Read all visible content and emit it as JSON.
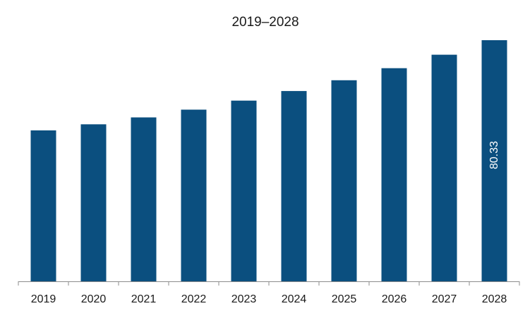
{
  "chart_data": {
    "type": "bar",
    "title": "2019–2028",
    "xlabel": "",
    "ylabel": "",
    "categories": [
      "2019",
      "2020",
      "2021",
      "2022",
      "2023",
      "2024",
      "2025",
      "2026",
      "2027",
      "2028"
    ],
    "values": [
      50.3,
      52.3,
      54.6,
      57.2,
      60.2,
      63.4,
      67.0,
      71.0,
      75.5,
      80.33
    ],
    "data_labels": [
      {
        "index": 9,
        "text": "80.33"
      }
    ],
    "ylim": [
      0,
      80.33
    ],
    "grid": false,
    "legend": "none",
    "colors": {
      "bar": "#0b4f7f",
      "axis": "#8c8c8c",
      "label": "#ffffff"
    }
  }
}
